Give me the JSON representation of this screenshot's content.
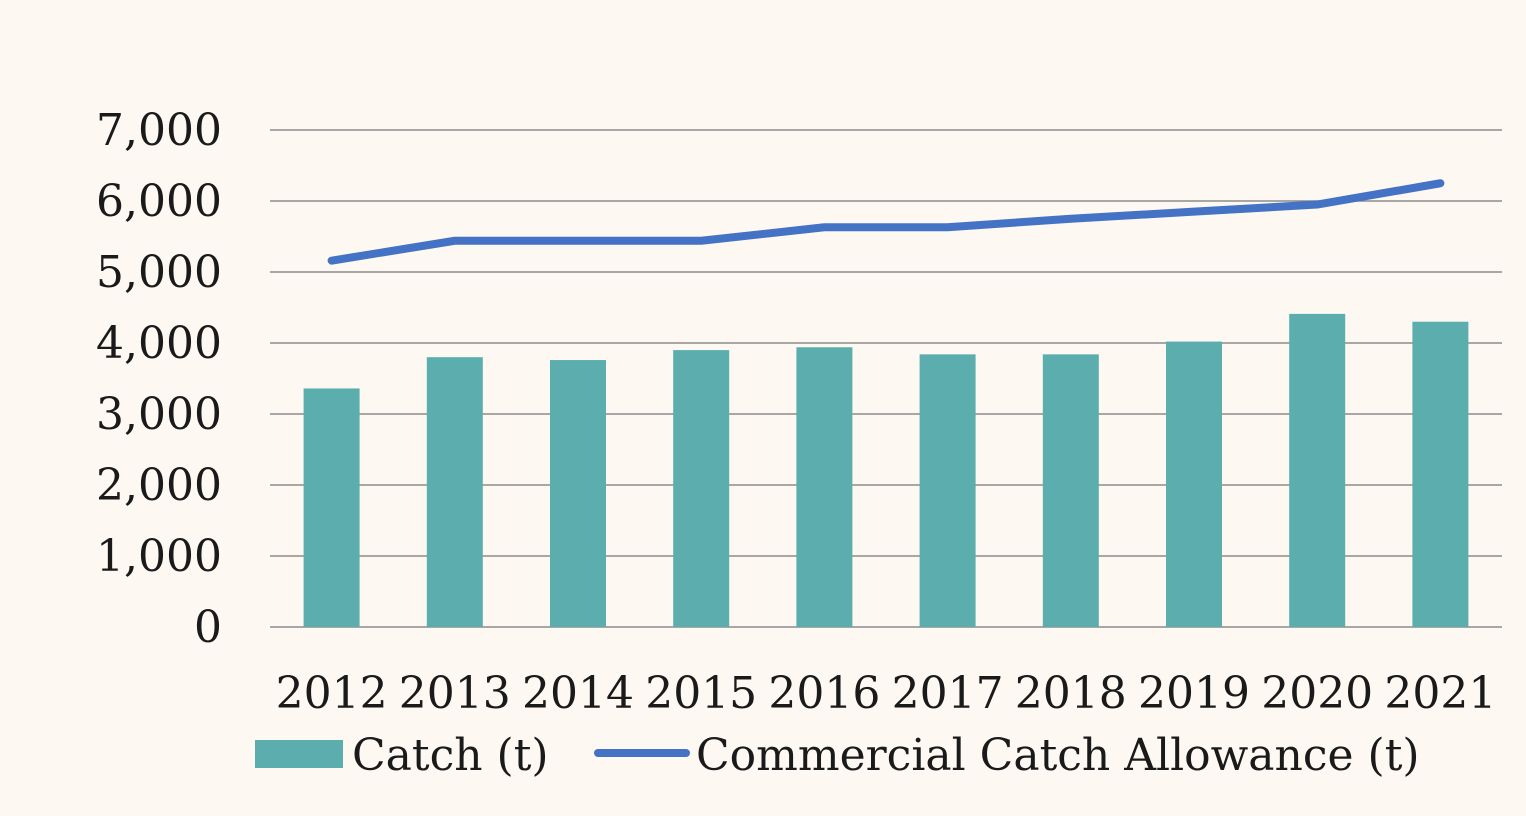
{
  "chart_data": {
    "type": "bar",
    "categories": [
      "2012",
      "2013",
      "2014",
      "2015",
      "2016",
      "2017",
      "2018",
      "2019",
      "2020",
      "2021"
    ],
    "series": [
      {
        "name": "Catch (t)",
        "type": "bar",
        "color": "#5baead",
        "values": [
          3360,
          3800,
          3760,
          3900,
          3940,
          3840,
          3840,
          4020,
          4410,
          4300
        ]
      },
      {
        "name": "Commercial Catch Allowance (t)",
        "type": "line",
        "color": "#4472c4",
        "values": [
          5160,
          5440,
          5440,
          5440,
          5630,
          5630,
          5750,
          5850,
          5950,
          6250
        ]
      }
    ],
    "ylim": [
      0,
      7000
    ],
    "yticks": [
      0,
      1000,
      2000,
      3000,
      4000,
      5000,
      6000,
      7000
    ],
    "ytick_labels": [
      "0",
      "1,000",
      "2,000",
      "3,000",
      "4,000",
      "5,000",
      "6,000",
      "7,000"
    ],
    "grid": true,
    "legend_position": "bottom",
    "title": "",
    "xlabel": "",
    "ylabel": ""
  }
}
